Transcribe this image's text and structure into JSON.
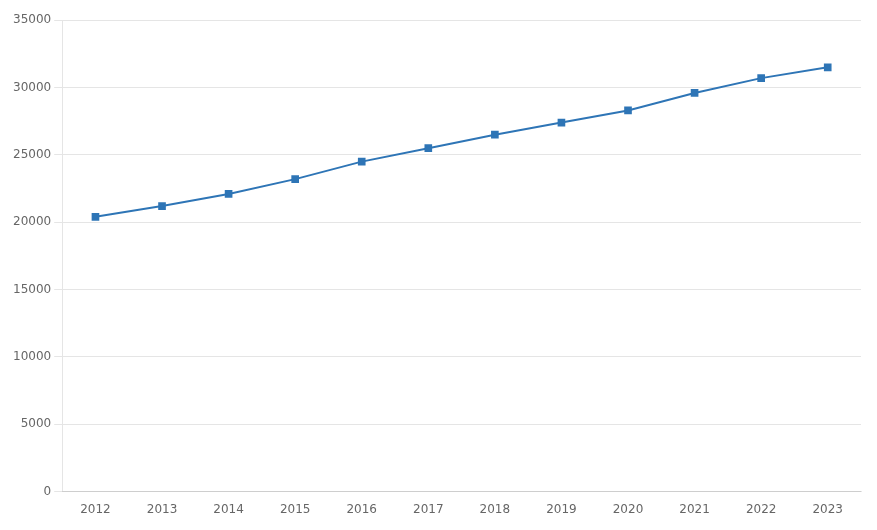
{
  "chart_data": {
    "type": "line",
    "x": [
      2012,
      2013,
      2014,
      2015,
      2016,
      2017,
      2018,
      2019,
      2020,
      2021,
      2022,
      2023
    ],
    "values": [
      20400,
      21200,
      22100,
      23200,
      24500,
      25500,
      26500,
      27400,
      28300,
      29600,
      30700,
      31500
    ],
    "color": "#2E75B6",
    "marker": "square",
    "xlim": [
      2011.5,
      2023.5
    ],
    "xticks": [
      2012,
      2013,
      2014,
      2015,
      2016,
      2017,
      2018,
      2019,
      2020,
      2021,
      2022,
      2023
    ],
    "ylim": [
      0,
      35000
    ],
    "yticks": [
      0,
      5000,
      10000,
      15000,
      20000,
      25000,
      30000,
      35000
    ],
    "grid": "y"
  }
}
